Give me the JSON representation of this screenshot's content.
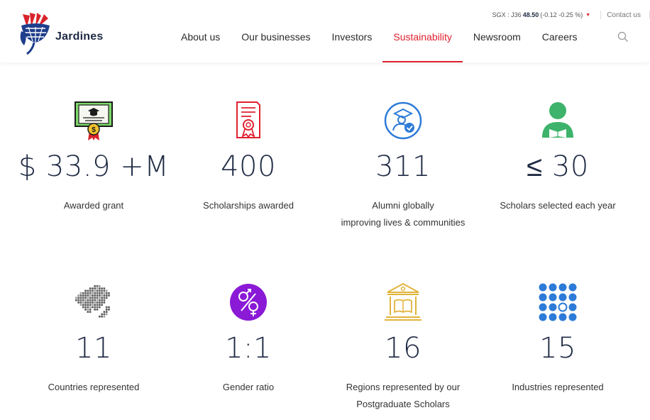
{
  "brand": {
    "name": "Jardines"
  },
  "topbar": {
    "stock_prefix": "SGX : J36",
    "stock_price": "48.50",
    "stock_change": "(-0.12 -0.25 %)",
    "contact": "Contact us"
  },
  "nav": {
    "items": [
      {
        "label": "About us"
      },
      {
        "label": "Our businesses"
      },
      {
        "label": "Investors"
      },
      {
        "label": "Sustainability"
      },
      {
        "label": "Newsroom"
      },
      {
        "label": "Careers"
      }
    ],
    "active": "Sustainability"
  },
  "stats": [
    {
      "value": "$ 33.9 +M",
      "label": "Awarded grant",
      "icon": "certificate-icon"
    },
    {
      "value": "400",
      "label": "Scholarships awarded",
      "icon": "award-document-icon"
    },
    {
      "value": "311",
      "label_line1": "Alumni globally",
      "label_line2": "improving lives & communities",
      "icon": "graduate-icon"
    },
    {
      "value": "≤ 30",
      "label": "Scholars selected each year",
      "icon": "scholar-reading-icon"
    },
    {
      "value": "11",
      "label": "Countries represented",
      "icon": "map-icon"
    },
    {
      "value": "1:1",
      "label": "Gender ratio",
      "icon": "gender-icon"
    },
    {
      "value": "16",
      "label_line1": "Regions represented by our",
      "label_line2": "Postgraduate Scholars",
      "icon": "library-icon"
    },
    {
      "value": "15",
      "label": "Industries represented",
      "icon": "dot-grid-icon"
    }
  ],
  "colors": {
    "accent": "#e0202e",
    "navy": "#1f2a44",
    "blue": "#2d7bd8",
    "green": "#3db36b",
    "purple": "#8a1ad6",
    "gold": "#e1b33a"
  }
}
